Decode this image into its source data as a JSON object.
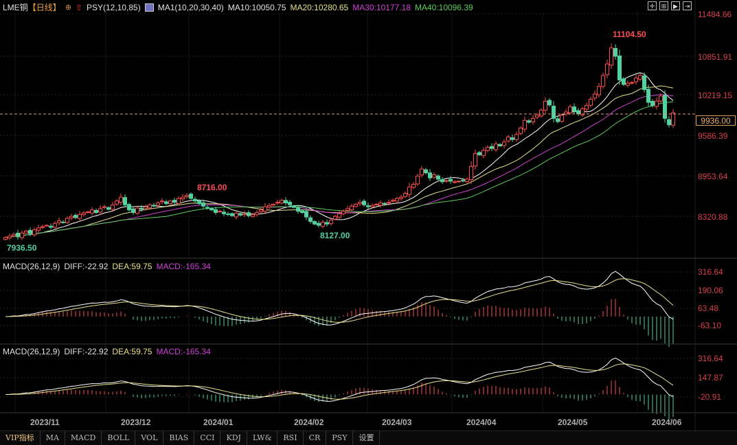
{
  "header": {
    "symbol": "LME铜",
    "period": "【日线】",
    "indicator1": "PSY(12,10,85)",
    "ma_group": "MA1(10,20,30,40)",
    "ma10": "MA10:10050.75",
    "ma20": "MA20:10280.65",
    "ma30": "MA30:10177.18",
    "ma40": "MA40:10096.39"
  },
  "colors": {
    "up": "#ff4d4d",
    "down": "#4fd3a0",
    "ma10": "#ffffff",
    "ma20": "#e8e28a",
    "ma30": "#d040d8",
    "ma40": "#5ccc5c",
    "axis_text": "#d8404a"
  },
  "toolbar_icons": [
    "crosshair-icon",
    "zoom-in-icon",
    "play-icon",
    "end-icon"
  ],
  "price_axis": [
    "11484.66",
    "10851.91",
    "10219.15",
    "9586.39",
    "8953.64",
    "8320.88"
  ],
  "current_price": "9936.00",
  "annotations": {
    "high": "11104.50",
    "local_high": "8716.00",
    "local_low": "8127.00",
    "low": "7936.50"
  },
  "macd_panels": [
    {
      "label": "MACD(26,12,9)",
      "diff": "DIFF:-22.92",
      "dea": "DEA:59.75",
      "macd": "MACD:-165.34",
      "axis": [
        "316.64",
        "190.06",
        "63.48",
        "-63.10"
      ]
    },
    {
      "label": "MACD(26,12,9)",
      "diff": "DIFF:-22.92",
      "dea": "DEA:59.75",
      "macd": "MACD:-165.34",
      "axis": [
        "316.64",
        "147.87",
        "-20.91"
      ]
    }
  ],
  "date_axis": [
    "2023/11",
    "2023/12",
    "2024/01",
    "2024/02",
    "2024/03",
    "2024/04",
    "2024/05",
    "2024/06"
  ],
  "tabs": [
    "VIP指标",
    "MA",
    "MACD",
    "BOLL",
    "VOL",
    "BIAS",
    "CCI",
    "KDJ",
    "LW&",
    "RSI",
    "CR",
    "PSY",
    "设置"
  ],
  "chart_data": {
    "type": "candlestick",
    "ylim": [
      7900,
      11484.66
    ],
    "close": [
      7990,
      8010,
      8040,
      8000,
      8060,
      8090,
      8050,
      8110,
      8140,
      8160,
      8180,
      8150,
      8210,
      8250,
      8230,
      8290,
      8320,
      8300,
      8350,
      8374,
      8390,
      8420,
      8380,
      8440,
      8470,
      8430,
      8500,
      8560,
      8620,
      8500,
      8420,
      8380,
      8450,
      8430,
      8470,
      8500,
      8490,
      8530,
      8560,
      8520,
      8560,
      8540,
      8600,
      8620,
      8650,
      8600,
      8560,
      8520,
      8480,
      8450,
      8420,
      8380,
      8400,
      8360,
      8350,
      8330,
      8370,
      8340,
      8360,
      8330,
      8350,
      8380,
      8420,
      8470,
      8490,
      8510,
      8540,
      8570,
      8530,
      8500,
      8460,
      8400,
      8380,
      8310,
      8240,
      8200,
      8180,
      8230,
      8200,
      8260,
      8320,
      8360,
      8400,
      8440,
      8480,
      8510,
      8540,
      8500,
      8470,
      8490,
      8510,
      8530,
      8520,
      8540,
      8570,
      8600,
      8620,
      8680,
      8780,
      8820,
      8950,
      9060,
      9000,
      8920,
      8970,
      8900,
      8860,
      8880,
      8870,
      8860,
      8870,
      8880,
      8900,
      9100,
      9300,
      9280,
      9350,
      9400,
      9380,
      9450,
      9420,
      9480,
      9560,
      9520,
      9600,
      9700,
      9820,
      9790,
      9850,
      9900,
      9980,
      10120,
      10060,
      9850,
      9800,
      9900,
      9950,
      10030,
      9960,
      9920,
      10000,
      10050,
      10150,
      10230,
      10350,
      10520,
      10700,
      10950,
      10820,
      10450,
      10380,
      10400,
      10410,
      10480,
      10520,
      10300,
      10100,
      10050,
      10120,
      10200,
      9850,
      9750,
      9936
    ]
  }
}
